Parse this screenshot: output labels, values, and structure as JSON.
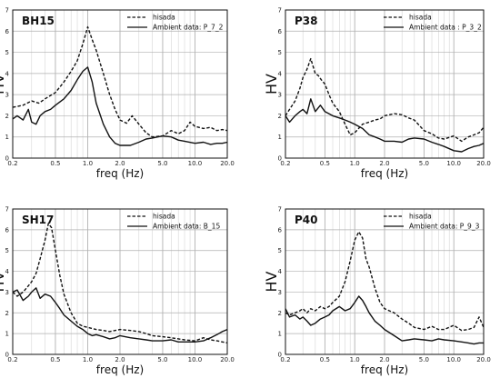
{
  "chart_data": [
    {
      "type": "line",
      "title": "BH15",
      "xlabel": "freq (Hz)",
      "ylabel": "HV",
      "xscale": "log",
      "xlim": [
        0.2,
        20.0
      ],
      "ylim": [
        0,
        7
      ],
      "xticks": [
        "0.2",
        "0.5",
        "1.0",
        "2.0",
        "5.0",
        "10.0",
        "20.0"
      ],
      "yticks": [
        "0",
        "1",
        "2",
        "3",
        "4",
        "5",
        "6",
        "7"
      ],
      "grid": true,
      "legend_position": "top-right",
      "series": [
        {
          "name": "hisada",
          "style": "dashed",
          "x": [
            0.2,
            0.25,
            0.3,
            0.35,
            0.4,
            0.5,
            0.6,
            0.7,
            0.8,
            0.9,
            1.0,
            1.1,
            1.2,
            1.4,
            1.6,
            1.8,
            2.0,
            2.3,
            2.6,
            3.0,
            3.5,
            4.0,
            5.0,
            6.0,
            7.0,
            8.0,
            9.0,
            10.0,
            12.0,
            14.0,
            16.0,
            18.0,
            20.0
          ],
          "y": [
            2.4,
            2.5,
            2.7,
            2.6,
            2.8,
            3.1,
            3.6,
            4.1,
            4.6,
            5.4,
            6.2,
            5.6,
            5.1,
            4.0,
            3.0,
            2.3,
            1.8,
            1.65,
            2.0,
            1.6,
            1.2,
            1.0,
            1.05,
            1.3,
            1.15,
            1.3,
            1.7,
            1.5,
            1.4,
            1.45,
            1.3,
            1.35,
            1.3
          ]
        },
        {
          "name": "Ambient data: P_7_2",
          "style": "solid",
          "x": [
            0.2,
            0.22,
            0.25,
            0.28,
            0.3,
            0.33,
            0.36,
            0.4,
            0.45,
            0.5,
            0.6,
            0.7,
            0.8,
            0.9,
            1.0,
            1.1,
            1.2,
            1.4,
            1.6,
            1.8,
            2.0,
            2.5,
            3.0,
            3.5,
            4.0,
            5.0,
            6.0,
            7.0,
            8.0,
            10.0,
            12.0,
            14.0,
            16.0,
            18.0,
            20.0
          ],
          "y": [
            1.85,
            2.0,
            1.8,
            2.3,
            1.7,
            1.6,
            2.0,
            2.2,
            2.3,
            2.5,
            2.8,
            3.2,
            3.7,
            4.1,
            4.3,
            3.6,
            2.6,
            1.6,
            1.0,
            0.7,
            0.6,
            0.6,
            0.75,
            0.9,
            0.95,
            1.05,
            1.0,
            0.85,
            0.8,
            0.7,
            0.75,
            0.65,
            0.7,
            0.7,
            0.75
          ]
        }
      ]
    },
    {
      "type": "line",
      "title": "P38",
      "xlabel": "freq (Hz)",
      "ylabel": "HV",
      "xscale": "log",
      "xlim": [
        0.2,
        20.0
      ],
      "ylim": [
        0,
        7
      ],
      "xticks": [
        "0.2",
        "0.5",
        "1.0",
        "2.0",
        "5.0",
        "10.0",
        "20.0"
      ],
      "yticks": [
        "0",
        "1",
        "2",
        "3",
        "4",
        "5",
        "6",
        "7"
      ],
      "grid": true,
      "legend_position": "top-right",
      "series": [
        {
          "name": "hisada",
          "style": "dashed",
          "x": [
            0.2,
            0.22,
            0.25,
            0.28,
            0.3,
            0.33,
            0.36,
            0.4,
            0.43,
            0.46,
            0.5,
            0.55,
            0.6,
            0.7,
            0.8,
            0.9,
            1.0,
            1.2,
            1.4,
            1.6,
            1.8,
            2.0,
            2.5,
            3.0,
            3.5,
            4.0,
            5.0,
            6.0,
            7.0,
            8.0,
            10.0,
            12.0,
            14.0,
            16.0,
            18.0,
            20.0
          ],
          "y": [
            2.0,
            2.3,
            2.7,
            3.3,
            3.8,
            4.2,
            4.7,
            4.0,
            3.9,
            3.7,
            3.5,
            3.0,
            2.6,
            2.2,
            1.6,
            1.1,
            1.2,
            1.6,
            1.7,
            1.8,
            1.85,
            2.0,
            2.1,
            2.05,
            1.9,
            1.8,
            1.3,
            1.15,
            0.95,
            0.9,
            1.05,
            0.8,
            1.0,
            1.1,
            1.2,
            1.45
          ]
        },
        {
          "name": "Ambient data : P_3_2",
          "style": "solid",
          "x": [
            0.2,
            0.22,
            0.25,
            0.28,
            0.3,
            0.33,
            0.36,
            0.4,
            0.45,
            0.5,
            0.6,
            0.7,
            0.8,
            0.9,
            1.0,
            1.2,
            1.4,
            1.6,
            1.8,
            2.0,
            2.5,
            3.0,
            3.5,
            4.0,
            5.0,
            6.0,
            7.0,
            8.0,
            10.0,
            12.0,
            14.0,
            16.0,
            18.0,
            20.0
          ],
          "y": [
            2.0,
            1.7,
            2.0,
            2.2,
            2.3,
            2.1,
            2.8,
            2.2,
            2.5,
            2.2,
            2.0,
            1.9,
            1.8,
            1.7,
            1.6,
            1.4,
            1.1,
            1.0,
            0.9,
            0.8,
            0.8,
            0.75,
            0.9,
            0.95,
            0.9,
            0.75,
            0.65,
            0.55,
            0.35,
            0.3,
            0.45,
            0.55,
            0.6,
            0.7
          ]
        }
      ]
    },
    {
      "type": "line",
      "title": "SH17",
      "xlabel": "freq (Hz)",
      "ylabel": "HV",
      "xscale": "log",
      "xlim": [
        0.2,
        20.0
      ],
      "ylim": [
        0,
        7
      ],
      "xticks": [
        "0.2",
        "0.5",
        "1.0",
        "2.0",
        "5.0",
        "10.0",
        "20.0"
      ],
      "yticks": [
        "0",
        "1",
        "2",
        "3",
        "4",
        "5",
        "6",
        "7"
      ],
      "grid": true,
      "legend_position": "top-right",
      "series": [
        {
          "name": "hisada",
          "style": "dashed",
          "x": [
            0.2,
            0.22,
            0.25,
            0.28,
            0.3,
            0.33,
            0.36,
            0.4,
            0.43,
            0.46,
            0.5,
            0.55,
            0.6,
            0.7,
            0.8,
            0.9,
            1.0,
            1.2,
            1.4,
            1.6,
            1.8,
            2.0,
            2.5,
            3.0,
            3.5,
            4.0,
            5.0,
            6.0,
            7.0,
            8.0,
            10.0,
            12.0,
            14.0,
            16.0,
            18.0,
            20.0
          ],
          "y": [
            3.0,
            2.8,
            3.0,
            3.3,
            3.5,
            3.9,
            4.6,
            5.5,
            6.3,
            6.1,
            5.0,
            3.8,
            2.9,
            2.0,
            1.5,
            1.35,
            1.3,
            1.2,
            1.15,
            1.1,
            1.15,
            1.2,
            1.15,
            1.1,
            1.0,
            0.9,
            0.85,
            0.8,
            0.75,
            0.7,
            0.65,
            0.8,
            0.7,
            0.65,
            0.6,
            0.55
          ]
        },
        {
          "name": "Ambient data: B_15",
          "style": "solid",
          "x": [
            0.2,
            0.22,
            0.25,
            0.28,
            0.3,
            0.33,
            0.36,
            0.4,
            0.45,
            0.5,
            0.55,
            0.6,
            0.7,
            0.8,
            0.9,
            1.0,
            1.1,
            1.2,
            1.4,
            1.6,
            1.8,
            2.0,
            2.5,
            3.0,
            3.5,
            4.0,
            5.0,
            6.0,
            7.0,
            8.0,
            10.0,
            12.0,
            14.0,
            16.0,
            18.0,
            20.0
          ],
          "y": [
            3.0,
            3.1,
            2.6,
            2.8,
            3.0,
            3.2,
            2.7,
            2.9,
            2.8,
            2.5,
            2.2,
            1.9,
            1.6,
            1.35,
            1.2,
            1.0,
            0.9,
            0.95,
            0.85,
            0.75,
            0.8,
            0.9,
            0.8,
            0.75,
            0.7,
            0.65,
            0.65,
            0.7,
            0.6,
            0.6,
            0.6,
            0.65,
            0.8,
            0.95,
            1.1,
            1.2
          ]
        }
      ]
    },
    {
      "type": "line",
      "title": "P40",
      "xlabel": "freq (Hz)",
      "ylabel": "HV",
      "xscale": "log",
      "xlim": [
        0.2,
        20.0
      ],
      "ylim": [
        0,
        7
      ],
      "xticks": [
        "0.2",
        "0.5",
        "1.0",
        "2.0",
        "5.0",
        "10.0",
        "20.0"
      ],
      "yticks": [
        "0",
        "1",
        "2",
        "3",
        "4",
        "5",
        "6",
        "7"
      ],
      "grid": true,
      "legend_position": "top-right",
      "series": [
        {
          "name": "hisada",
          "style": "dashed",
          "x": [
            0.2,
            0.22,
            0.25,
            0.28,
            0.3,
            0.33,
            0.36,
            0.4,
            0.45,
            0.5,
            0.55,
            0.6,
            0.7,
            0.8,
            0.9,
            1.0,
            1.1,
            1.2,
            1.3,
            1.4,
            1.6,
            1.8,
            2.0,
            2.5,
            3.0,
            3.5,
            4.0,
            5.0,
            6.0,
            7.0,
            8.0,
            10.0,
            12.0,
            14.0,
            16.0,
            18.0,
            20.0
          ],
          "y": [
            2.0,
            1.9,
            2.0,
            2.1,
            2.2,
            2.0,
            2.2,
            2.1,
            2.3,
            2.2,
            2.3,
            2.5,
            2.8,
            3.5,
            4.5,
            5.5,
            5.9,
            5.6,
            4.6,
            4.2,
            3.2,
            2.5,
            2.2,
            2.0,
            1.7,
            1.5,
            1.3,
            1.2,
            1.35,
            1.2,
            1.2,
            1.4,
            1.15,
            1.2,
            1.3,
            1.8,
            1.3
          ]
        },
        {
          "name": "Ambient data: P_9_3",
          "style": "solid",
          "x": [
            0.2,
            0.22,
            0.25,
            0.28,
            0.3,
            0.33,
            0.36,
            0.4,
            0.45,
            0.5,
            0.55,
            0.6,
            0.7,
            0.8,
            0.9,
            1.0,
            1.1,
            1.2,
            1.3,
            1.4,
            1.6,
            1.8,
            2.0,
            2.5,
            3.0,
            3.5,
            4.0,
            5.0,
            6.0,
            7.0,
            8.0,
            10.0,
            12.0,
            14.0,
            16.0,
            18.0,
            20.0
          ],
          "y": [
            2.2,
            1.8,
            1.9,
            1.7,
            1.8,
            1.6,
            1.4,
            1.5,
            1.7,
            1.8,
            1.9,
            2.1,
            2.3,
            2.1,
            2.2,
            2.5,
            2.8,
            2.6,
            2.3,
            2.0,
            1.6,
            1.4,
            1.2,
            0.9,
            0.65,
            0.7,
            0.75,
            0.7,
            0.65,
            0.75,
            0.7,
            0.65,
            0.6,
            0.55,
            0.5,
            0.55,
            0.55
          ]
        }
      ]
    }
  ]
}
